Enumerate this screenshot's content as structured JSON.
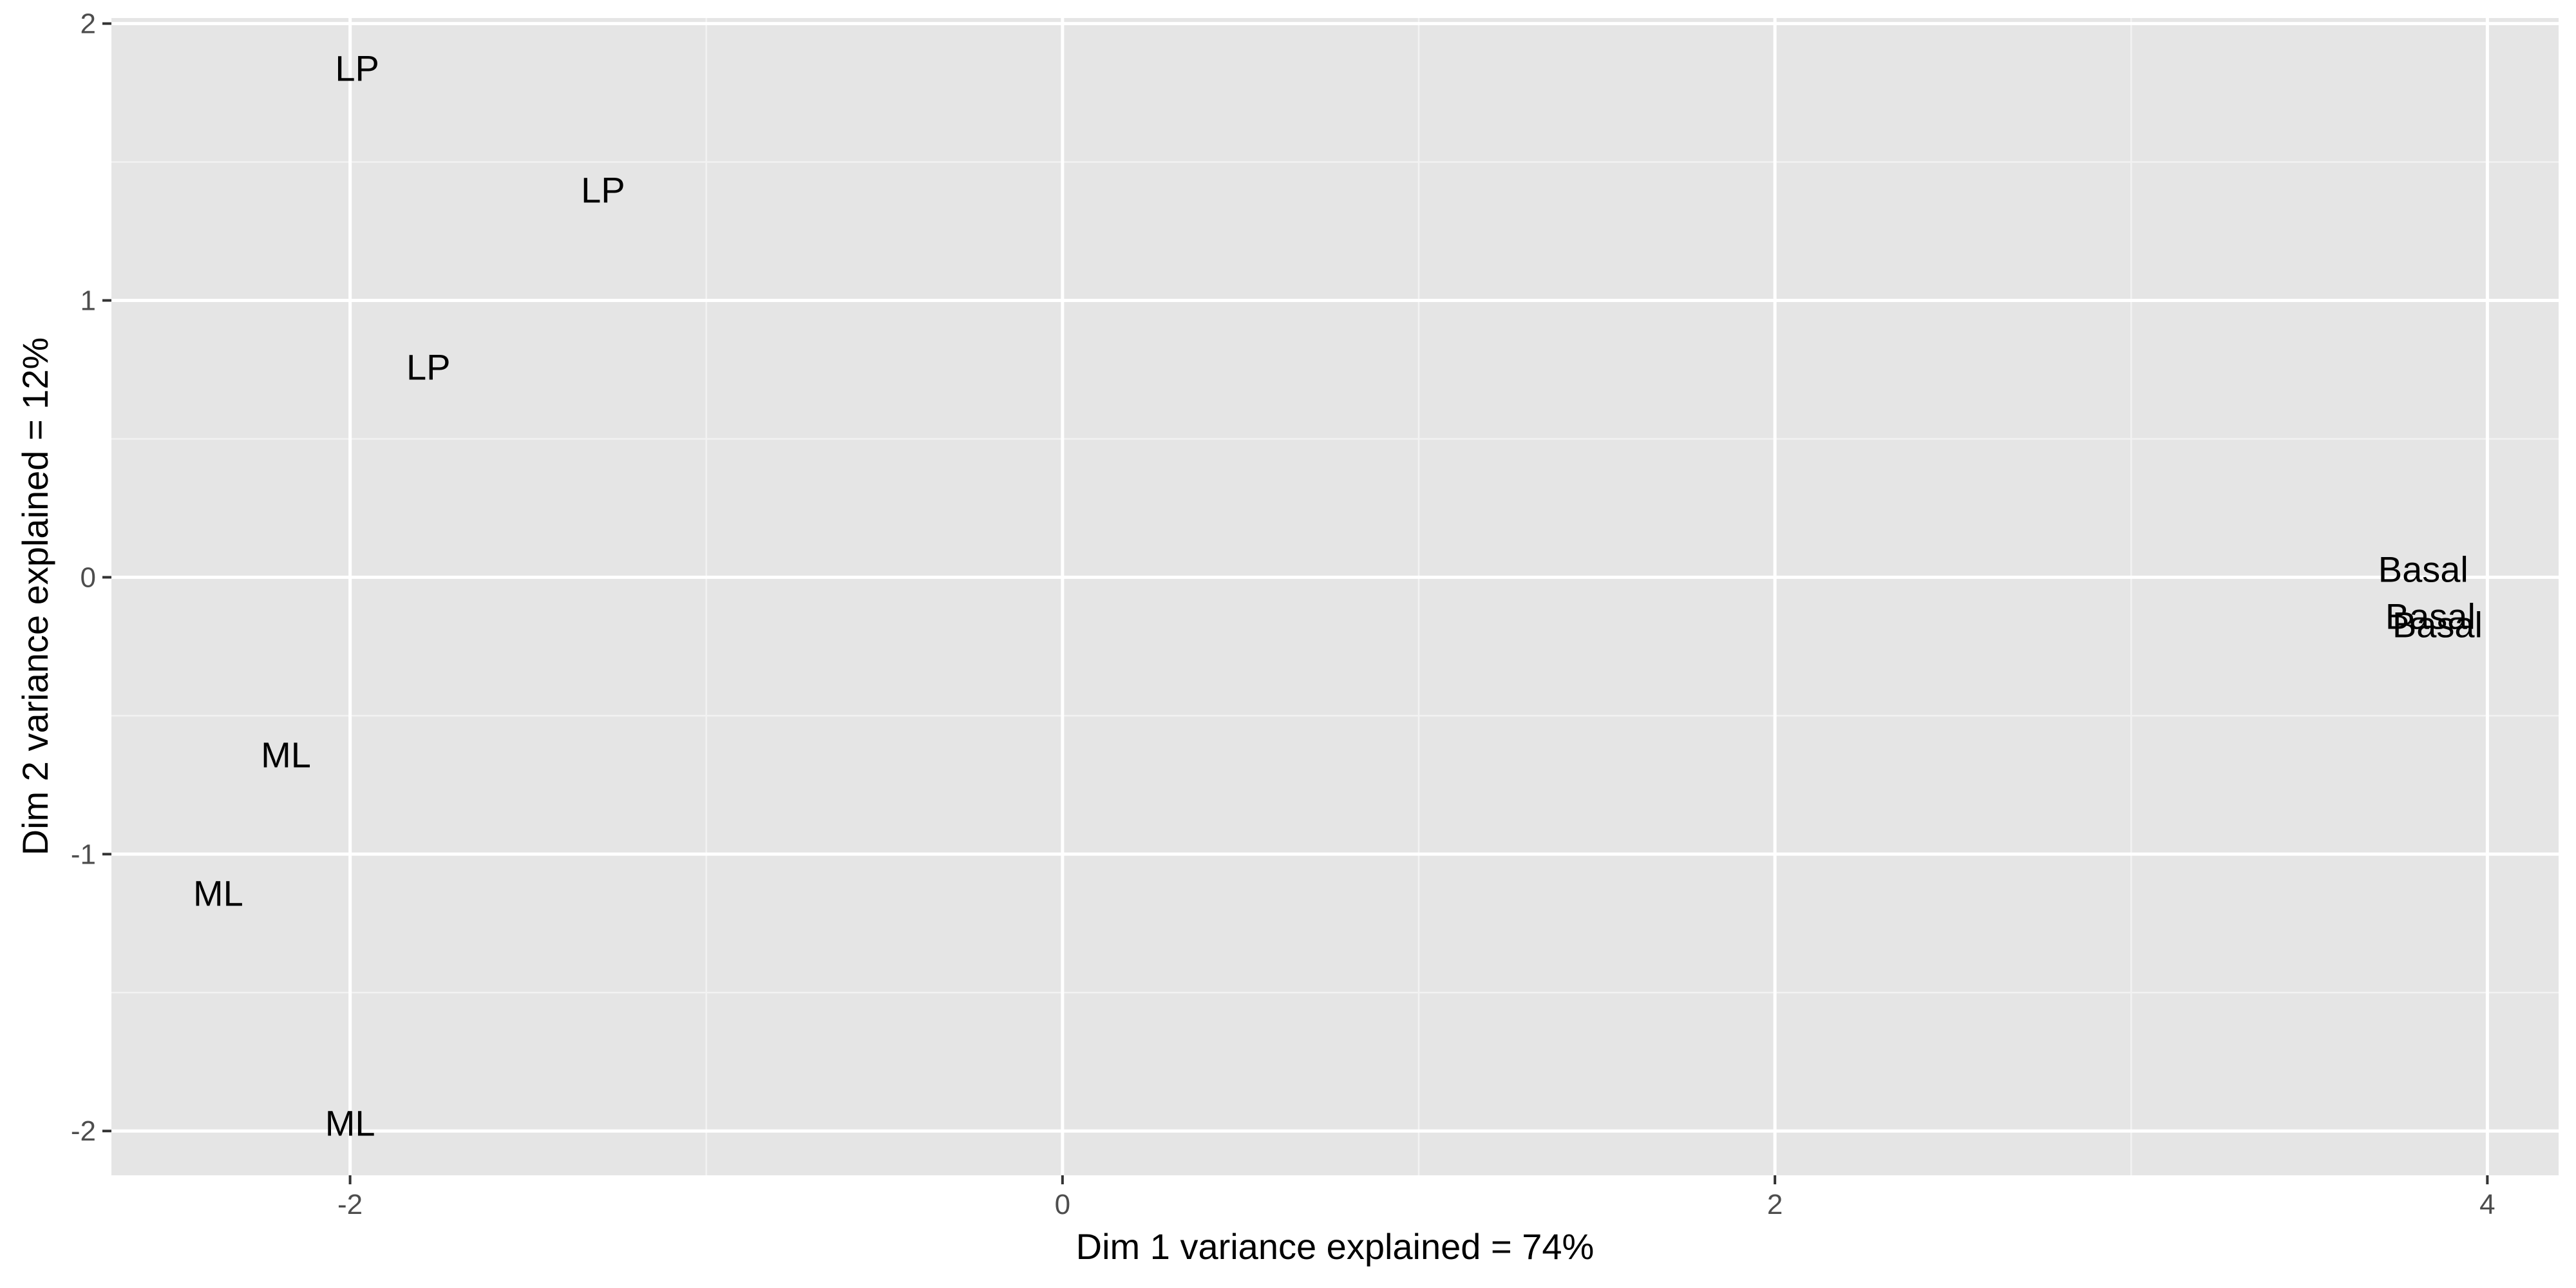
{
  "chart_data": {
    "type": "scatter",
    "marker": "text",
    "title": "",
    "xlabel": "Dim 1 variance explained = 74%",
    "ylabel": "Dim 2 variance explained = 12%",
    "xlim": [
      -2.67,
      4.2
    ],
    "ylim": [
      -2.16,
      2.02
    ],
    "xticks": [
      -2,
      0,
      2,
      4
    ],
    "yticks": [
      -2,
      -1,
      0,
      1,
      2
    ],
    "grid": true,
    "legend": "none",
    "points": [
      {
        "label": "LP",
        "x": -1.98,
        "y": 1.84
      },
      {
        "label": "LP",
        "x": -1.29,
        "y": 1.4
      },
      {
        "label": "LP",
        "x": -1.78,
        "y": 0.76
      },
      {
        "label": "ML",
        "x": -2.18,
        "y": -0.64
      },
      {
        "label": "ML",
        "x": -2.37,
        "y": -1.14
      },
      {
        "label": "ML",
        "x": -2.0,
        "y": -1.97
      },
      {
        "label": "Basal",
        "x": 3.82,
        "y": 0.03
      },
      {
        "label": "Basal",
        "x": 3.84,
        "y": -0.14
      },
      {
        "label": "Basal",
        "x": 3.86,
        "y": -0.17
      }
    ]
  }
}
